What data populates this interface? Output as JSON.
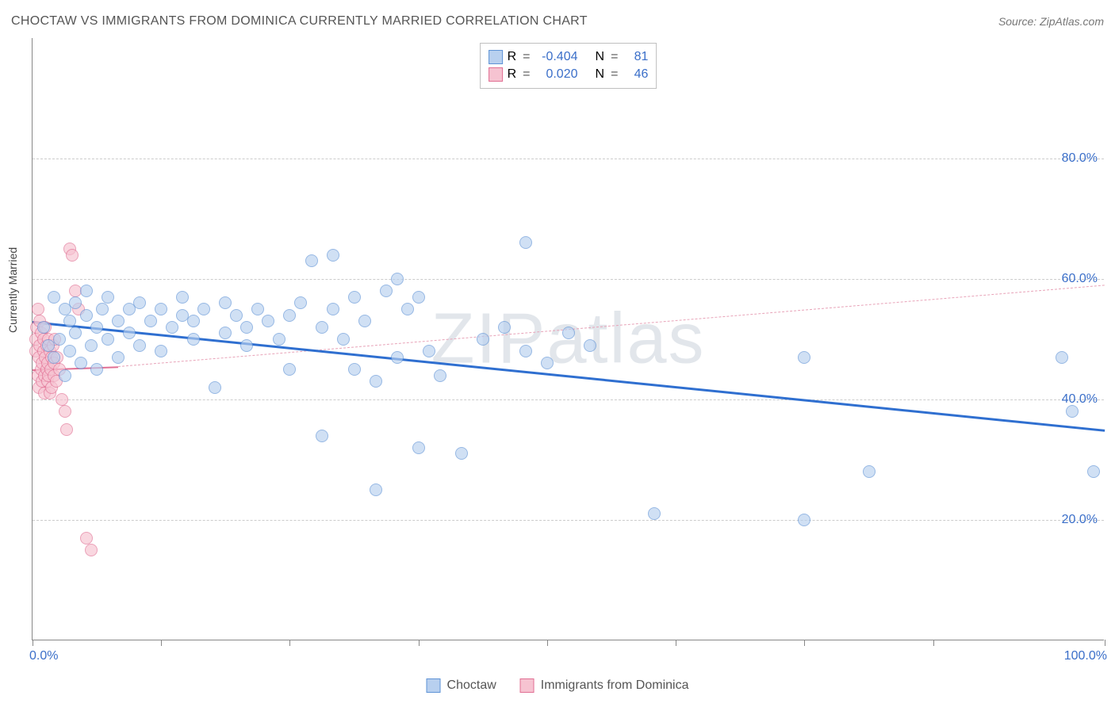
{
  "title": "CHOCTAW VS IMMIGRANTS FROM DOMINICA CURRENTLY MARRIED CORRELATION CHART",
  "source_prefix": "Source: ",
  "source_name": "ZipAtlas.com",
  "watermark": "ZIPatlas",
  "ylabel": "Currently Married",
  "chart": {
    "type": "scatter",
    "xlim": [
      0,
      100
    ],
    "ylim": [
      0,
      100
    ],
    "yticks": [
      20,
      40,
      60,
      80
    ],
    "ytick_labels": [
      "20.0%",
      "40.0%",
      "60.0%",
      "80.0%"
    ],
    "xticks": [
      0,
      12,
      24,
      36,
      48,
      60,
      72,
      84,
      100
    ],
    "xaxis_left_label": "0.0%",
    "xaxis_right_label": "100.0%",
    "grid_color": "#cccccc",
    "axis_color": "#888888",
    "background": "#ffffff",
    "marker_radius": 8,
    "series": [
      {
        "name": "Choctaw",
        "fill": "#b8d0ef",
        "stroke": "#5f93d6",
        "fill_opacity": 0.65,
        "R": "-0.404",
        "N": "81",
        "trend": {
          "x1": 0,
          "y1": 53,
          "x2": 100,
          "y2": 35,
          "color": "#2f6fd0",
          "width": 3,
          "dash": false
        },
        "points": [
          [
            1,
            52
          ],
          [
            1.5,
            49
          ],
          [
            2,
            47
          ],
          [
            2,
            57
          ],
          [
            2.5,
            50
          ],
          [
            3,
            44
          ],
          [
            3,
            55
          ],
          [
            3.5,
            48
          ],
          [
            3.5,
            53
          ],
          [
            4,
            56
          ],
          [
            4,
            51
          ],
          [
            4.5,
            46
          ],
          [
            5,
            54
          ],
          [
            5,
            58
          ],
          [
            5.5,
            49
          ],
          [
            6,
            52
          ],
          [
            6,
            45
          ],
          [
            6.5,
            55
          ],
          [
            7,
            50
          ],
          [
            7,
            57
          ],
          [
            8,
            53
          ],
          [
            8,
            47
          ],
          [
            9,
            55
          ],
          [
            9,
            51
          ],
          [
            10,
            56
          ],
          [
            10,
            49
          ],
          [
            11,
            53
          ],
          [
            12,
            55
          ],
          [
            12,
            48
          ],
          [
            13,
            52
          ],
          [
            14,
            54
          ],
          [
            14,
            57
          ],
          [
            15,
            50
          ],
          [
            15,
            53
          ],
          [
            16,
            55
          ],
          [
            17,
            42
          ],
          [
            18,
            51
          ],
          [
            18,
            56
          ],
          [
            19,
            54
          ],
          [
            20,
            49
          ],
          [
            20,
            52
          ],
          [
            21,
            55
          ],
          [
            22,
            53
          ],
          [
            23,
            50
          ],
          [
            24,
            54
          ],
          [
            24,
            45
          ],
          [
            25,
            56
          ],
          [
            26,
            63
          ],
          [
            27,
            52
          ],
          [
            27,
            34
          ],
          [
            28,
            64
          ],
          [
            28,
            55
          ],
          [
            29,
            50
          ],
          [
            30,
            57
          ],
          [
            30,
            45
          ],
          [
            31,
            53
          ],
          [
            32,
            43
          ],
          [
            32,
            25
          ],
          [
            33,
            58
          ],
          [
            34,
            47
          ],
          [
            34,
            60
          ],
          [
            35,
            55
          ],
          [
            36,
            57
          ],
          [
            36,
            32
          ],
          [
            37,
            48
          ],
          [
            38,
            44
          ],
          [
            40,
            31
          ],
          [
            42,
            50
          ],
          [
            44,
            52
          ],
          [
            46,
            66
          ],
          [
            46,
            48
          ],
          [
            48,
            46
          ],
          [
            50,
            51
          ],
          [
            52,
            49
          ],
          [
            58,
            21
          ],
          [
            72,
            47
          ],
          [
            72,
            20
          ],
          [
            78,
            28
          ],
          [
            96,
            47
          ],
          [
            97,
            38
          ],
          [
            99,
            28
          ]
        ]
      },
      {
        "name": "Immigrants from Dominica",
        "fill": "#f6c3d1",
        "stroke": "#e16f93",
        "fill_opacity": 0.65,
        "R": "0.020",
        "N": "46",
        "trend_solid": {
          "x1": 0,
          "y1": 45,
          "x2": 8,
          "y2": 45.5,
          "color": "#e16f93",
          "width": 2.5,
          "dash": false
        },
        "trend": {
          "x1": 8,
          "y1": 45.5,
          "x2": 100,
          "y2": 59,
          "color": "#e8a3b8",
          "width": 1.2,
          "dash": true
        },
        "points": [
          [
            0.3,
            50
          ],
          [
            0.3,
            48
          ],
          [
            0.4,
            52
          ],
          [
            0.5,
            44
          ],
          [
            0.5,
            55
          ],
          [
            0.6,
            47
          ],
          [
            0.6,
            42
          ],
          [
            0.7,
            49
          ],
          [
            0.7,
            53
          ],
          [
            0.8,
            45
          ],
          [
            0.8,
            51
          ],
          [
            0.9,
            46
          ],
          [
            0.9,
            43
          ],
          [
            1.0,
            48
          ],
          [
            1.0,
            50
          ],
          [
            1.1,
            44
          ],
          [
            1.1,
            41
          ],
          [
            1.2,
            47
          ],
          [
            1.2,
            52
          ],
          [
            1.3,
            45
          ],
          [
            1.3,
            49
          ],
          [
            1.4,
            43
          ],
          [
            1.4,
            46
          ],
          [
            1.5,
            50
          ],
          [
            1.5,
            44
          ],
          [
            1.6,
            48
          ],
          [
            1.6,
            41
          ],
          [
            1.7,
            45
          ],
          [
            1.8,
            47
          ],
          [
            1.8,
            42
          ],
          [
            1.9,
            49
          ],
          [
            2.0,
            44
          ],
          [
            2.0,
            46
          ],
          [
            2.1,
            50
          ],
          [
            2.2,
            43
          ],
          [
            2.3,
            47
          ],
          [
            2.5,
            45
          ],
          [
            2.7,
            40
          ],
          [
            3.0,
            38
          ],
          [
            3.2,
            35
          ],
          [
            3.5,
            65
          ],
          [
            3.7,
            64
          ],
          [
            4.0,
            58
          ],
          [
            4.3,
            55
          ],
          [
            5.0,
            17
          ],
          [
            5.5,
            15
          ]
        ]
      }
    ]
  },
  "legend": {
    "series1_label": "Choctaw",
    "series2_label": "Immigrants from Dominica"
  },
  "stats_labels": {
    "R": "R",
    "N": "N",
    "eq": "="
  }
}
